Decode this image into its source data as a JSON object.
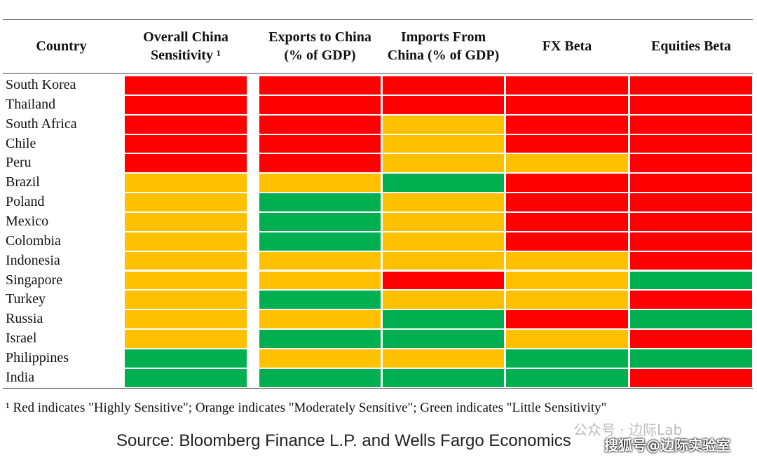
{
  "table": {
    "headers": [
      "Country",
      "Overall China Sensitivity ¹",
      "Exports to China (% of GDP)",
      "Imports From China (% of GDP)",
      "FX Beta",
      "Equities Beta"
    ],
    "rows": [
      {
        "country": "South Korea",
        "cells": [
          "#ff0000",
          "#ff0000",
          "#ff0000",
          "#ff0000",
          "#ff0000"
        ]
      },
      {
        "country": "Thailand",
        "cells": [
          "#ff0000",
          "#ff0000",
          "#ff0000",
          "#ff0000",
          "#ff0000"
        ]
      },
      {
        "country": "South Africa",
        "cells": [
          "#ff0000",
          "#ff0000",
          "#ffc000",
          "#ff0000",
          "#ff0000"
        ]
      },
      {
        "country": "Chile",
        "cells": [
          "#ff0000",
          "#ff0000",
          "#ffc000",
          "#ff0000",
          "#ff0000"
        ]
      },
      {
        "country": "Peru",
        "cells": [
          "#ff0000",
          "#ff0000",
          "#ffc000",
          "#ffc000",
          "#ff0000"
        ]
      },
      {
        "country": "Brazil",
        "cells": [
          "#ffc000",
          "#ffc000",
          "#00b050",
          "#ff0000",
          "#ff0000"
        ]
      },
      {
        "country": "Poland",
        "cells": [
          "#ffc000",
          "#00b050",
          "#ffc000",
          "#ff0000",
          "#ff0000"
        ]
      },
      {
        "country": "Mexico",
        "cells": [
          "#ffc000",
          "#00b050",
          "#ffc000",
          "#ff0000",
          "#ff0000"
        ]
      },
      {
        "country": "Colombia",
        "cells": [
          "#ffc000",
          "#00b050",
          "#ffc000",
          "#ff0000",
          "#ff0000"
        ]
      },
      {
        "country": "Indonesia",
        "cells": [
          "#ffc000",
          "#ffc000",
          "#ffc000",
          "#ffc000",
          "#ff0000"
        ]
      },
      {
        "country": "Singapore",
        "cells": [
          "#ffc000",
          "#ffc000",
          "#ff0000",
          "#ffc000",
          "#00b050"
        ]
      },
      {
        "country": "Turkey",
        "cells": [
          "#ffc000",
          "#00b050",
          "#ffc000",
          "#ffc000",
          "#ff0000"
        ]
      },
      {
        "country": "Russia",
        "cells": [
          "#ffc000",
          "#ffc000",
          "#00b050",
          "#ff0000",
          "#00b050"
        ]
      },
      {
        "country": "Israel",
        "cells": [
          "#ffc000",
          "#00b050",
          "#00b050",
          "#ffc000",
          "#ff0000"
        ]
      },
      {
        "country": "Philippines",
        "cells": [
          "#00b050",
          "#ffc000",
          "#ffc000",
          "#00b050",
          "#00b050"
        ]
      },
      {
        "country": "India",
        "cells": [
          "#00b050",
          "#00b050",
          "#00b050",
          "#00b050",
          "#ff0000"
        ]
      }
    ]
  },
  "footnote": "¹ Red indicates \"Highly Sensitive\"; Orange indicates \"Moderately Sensitive\"; Green indicates \"Little Sensitivity\"",
  "source": "Source: Bloomberg Finance L.P. and Wells Fargo Economics",
  "watermarks": [
    "公众号 · 边际Lab",
    "搜狐号@边际实验室"
  ]
}
